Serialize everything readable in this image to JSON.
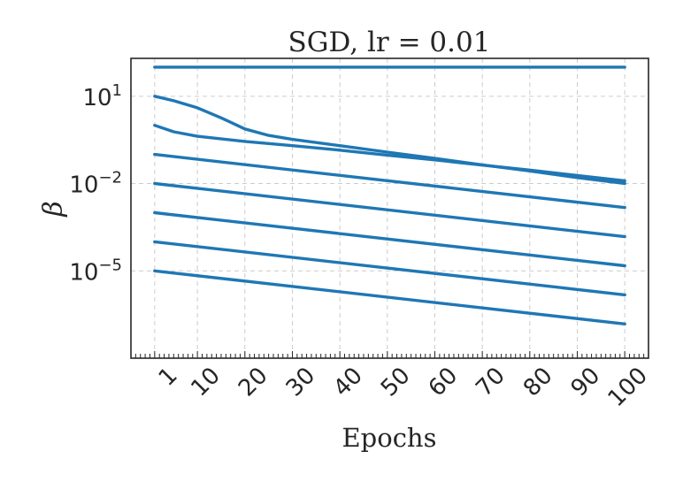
{
  "chart_data": {
    "type": "line",
    "title": "SGD, lr = 0.01",
    "xlabel": "Epochs",
    "ylabel": "β",
    "x_scale": "linear",
    "y_scale": "log",
    "xlim": [
      -4,
      105
    ],
    "ylim": [
      1e-08,
      200
    ],
    "xticks": [
      1,
      10,
      20,
      30,
      40,
      50,
      60,
      70,
      80,
      90,
      100
    ],
    "xtick_labels": [
      "1",
      "10",
      "20",
      "30",
      "40",
      "50",
      "60",
      "70",
      "80",
      "90",
      "100"
    ],
    "yticks": [
      {
        "value": 10,
        "base": "10",
        "exp": "1"
      },
      {
        "value": 0.01,
        "base": "10",
        "exp": "−2"
      },
      {
        "value": 1e-05,
        "base": "10",
        "exp": "−5"
      }
    ],
    "grid": true,
    "color": "#1f77b4",
    "series": [
      {
        "x": [
          1,
          100
        ],
        "y": [
          100,
          100
        ]
      },
      {
        "x": [
          1,
          5,
          10,
          15,
          20,
          25,
          30,
          40,
          50,
          60,
          70,
          80,
          90,
          100
        ],
        "y": [
          10,
          7,
          4,
          1.8,
          0.75,
          0.45,
          0.33,
          0.2,
          0.12,
          0.073,
          0.044,
          0.027,
          0.016,
          0.01
        ]
      },
      {
        "x": [
          1,
          5,
          10,
          20,
          30,
          40,
          50,
          60,
          70,
          80,
          90,
          100
        ],
        "y": [
          1,
          0.6,
          0.42,
          0.28,
          0.2,
          0.14,
          0.095,
          0.065,
          0.043,
          0.029,
          0.019,
          0.0125
        ]
      },
      {
        "x": [
          1,
          100
        ],
        "y": [
          0.1,
          0.0015
        ]
      },
      {
        "x": [
          1,
          100
        ],
        "y": [
          0.01,
          0.00015
        ]
      },
      {
        "x": [
          1,
          100
        ],
        "y": [
          0.001,
          1.5e-05
        ]
      },
      {
        "x": [
          1,
          100
        ],
        "y": [
          0.0001,
          1.5e-06
        ]
      },
      {
        "x": [
          1,
          100
        ],
        "y": [
          1e-05,
          1.5e-07
        ]
      }
    ]
  }
}
